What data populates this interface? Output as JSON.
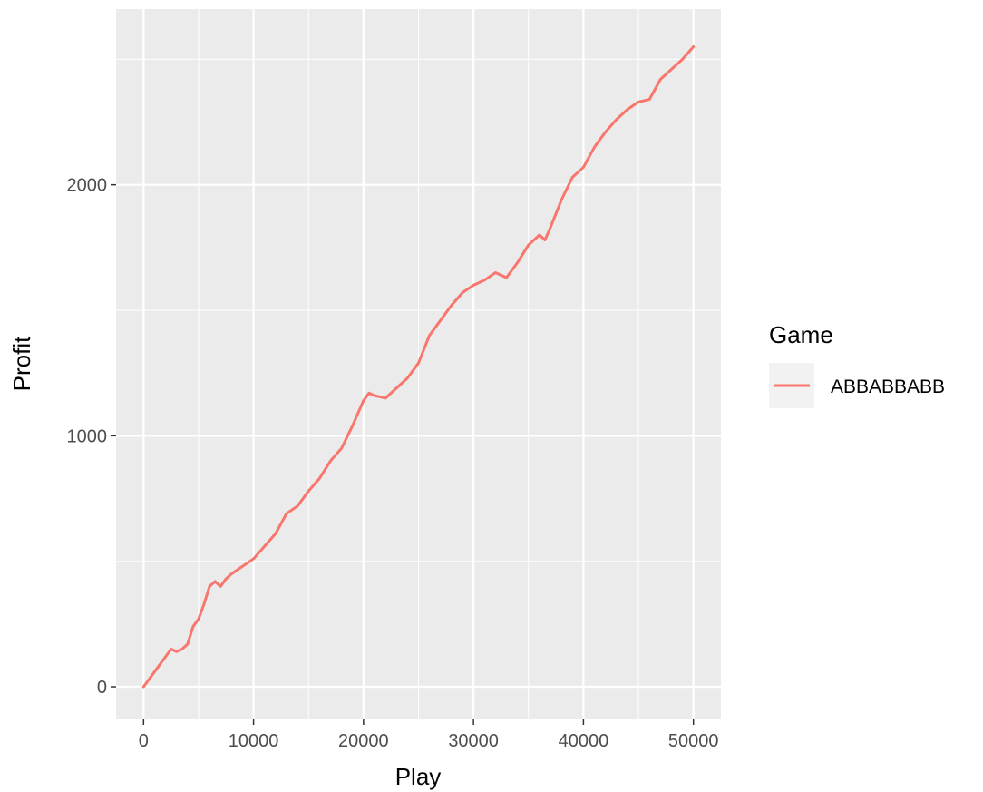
{
  "chart_data": {
    "type": "line",
    "title": "",
    "xlabel": "Play",
    "ylabel": "Profit",
    "xlim": [
      -2500,
      52500
    ],
    "ylim": [
      -130,
      2700
    ],
    "xticks": [
      0,
      10000,
      20000,
      30000,
      40000,
      50000
    ],
    "xtick_labels": [
      "0",
      "10000",
      "20000",
      "30000",
      "40000",
      "50000"
    ],
    "yticks": [
      0,
      1000,
      2000
    ],
    "ytick_labels": [
      "0",
      "1000",
      "2000"
    ],
    "grid": true,
    "legend": {
      "title": "Game",
      "position": "right"
    },
    "series": [
      {
        "name": "ABBABBABB",
        "color": "#F8766D",
        "x": [
          0,
          500,
          1000,
          1500,
          2000,
          2500,
          3000,
          3500,
          4000,
          4500,
          5000,
          5500,
          6000,
          6500,
          7000,
          7500,
          8000,
          9000,
          10000,
          11000,
          12000,
          12500,
          13000,
          14000,
          15000,
          16000,
          17000,
          18000,
          19000,
          19500,
          20000,
          20500,
          21000,
          22000,
          23000,
          24000,
          25000,
          26000,
          27000,
          28000,
          29000,
          30000,
          31000,
          32000,
          33000,
          34000,
          35000,
          36000,
          36500,
          37000,
          38000,
          39000,
          40000,
          41000,
          42000,
          43000,
          44000,
          45000,
          46000,
          47000,
          48000,
          49000,
          50000
        ],
        "values": [
          0,
          30,
          60,
          90,
          120,
          150,
          140,
          150,
          170,
          240,
          270,
          330,
          400,
          420,
          400,
          430,
          450,
          480,
          510,
          560,
          610,
          650,
          690,
          720,
          780,
          830,
          900,
          950,
          1040,
          1090,
          1140,
          1170,
          1160,
          1150,
          1190,
          1230,
          1290,
          1400,
          1460,
          1520,
          1570,
          1600,
          1620,
          1650,
          1630,
          1690,
          1760,
          1800,
          1780,
          1830,
          1940,
          2030,
          2070,
          2150,
          2210,
          2260,
          2300,
          2330,
          2340,
          2420,
          2460,
          2500,
          2550
        ]
      }
    ]
  }
}
